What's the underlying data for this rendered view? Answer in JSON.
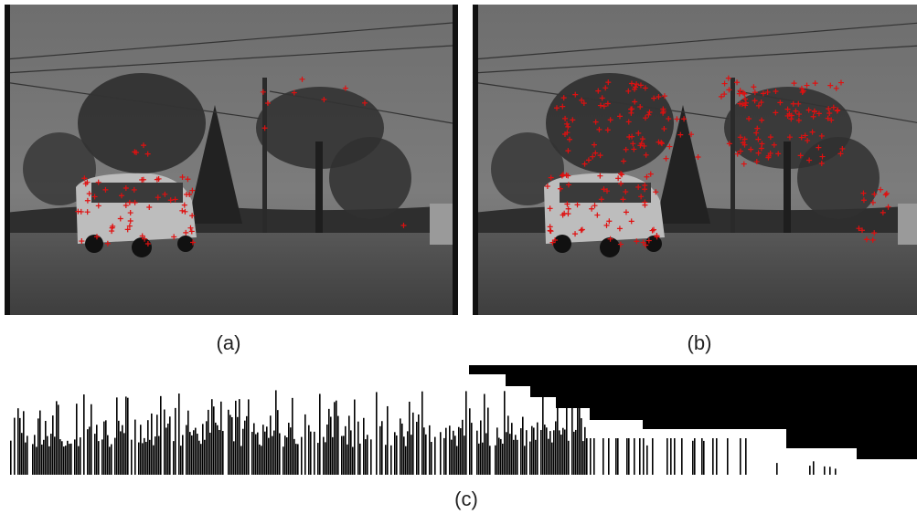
{
  "figure": {
    "labels": [
      "(a)",
      "(b)",
      "(c)"
    ]
  }
}
